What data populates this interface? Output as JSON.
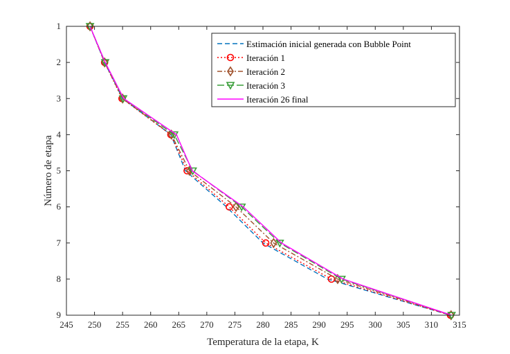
{
  "chart_data": {
    "type": "line",
    "title": "",
    "xlabel": "Temperatura de la etapa, K",
    "ylabel": "Número de etapa",
    "xlim": [
      245,
      315
    ],
    "ylim": [
      1,
      9
    ],
    "y_reversed": true,
    "xticks": [
      245,
      250,
      255,
      260,
      265,
      270,
      275,
      280,
      285,
      290,
      295,
      300,
      305,
      310,
      315
    ],
    "yticks": [
      1,
      2,
      3,
      4,
      5,
      6,
      7,
      8,
      9
    ],
    "grid": false,
    "legend_position": "top-right",
    "series": [
      {
        "name": "Estimación inicial generada con Bubble Point",
        "color": "#0072BD",
        "dash": "dashed",
        "marker": "none",
        "x": [
          249.2,
          251.8,
          255.0,
          263.6,
          266.2,
          273.5,
          280.0,
          291.5,
          313.4
        ],
        "y": [
          1,
          2,
          3,
          4,
          5,
          6,
          7,
          8,
          9
        ]
      },
      {
        "name": "Iteración 1",
        "color": "#FF0000",
        "dash": "dotted",
        "marker": "circle",
        "x": [
          249.2,
          251.8,
          254.9,
          263.6,
          266.5,
          274.0,
          280.5,
          292.2,
          313.4
        ],
        "y": [
          1,
          2,
          3,
          4,
          5,
          6,
          7,
          8,
          9
        ]
      },
      {
        "name": "Iteración 2",
        "color": "#A0522D",
        "dash": "dashdot",
        "marker": "diamond",
        "x": [
          249.2,
          251.8,
          255.0,
          263.7,
          266.9,
          275.2,
          281.9,
          293.3,
          313.5
        ],
        "y": [
          1,
          2,
          3,
          4,
          5,
          6,
          7,
          8,
          9
        ]
      },
      {
        "name": "Iteración 3",
        "color": "#3A9E3A",
        "dash": "longdash",
        "marker": "triangle-down",
        "x": [
          249.2,
          251.9,
          255.1,
          264.2,
          267.5,
          276.2,
          283.0,
          294.0,
          313.6
        ],
        "y": [
          1,
          2,
          3,
          4,
          5,
          6,
          7,
          8,
          9
        ]
      },
      {
        "name": "Iteración 26 final",
        "color": "#FF00FF",
        "dash": "solid",
        "marker": "none",
        "x": [
          249.2,
          251.9,
          255.2,
          264.6,
          267.4,
          276.5,
          283.3,
          294.3,
          313.6
        ],
        "y": [
          1,
          2,
          3,
          4,
          5,
          6,
          7,
          8,
          9
        ]
      }
    ]
  }
}
